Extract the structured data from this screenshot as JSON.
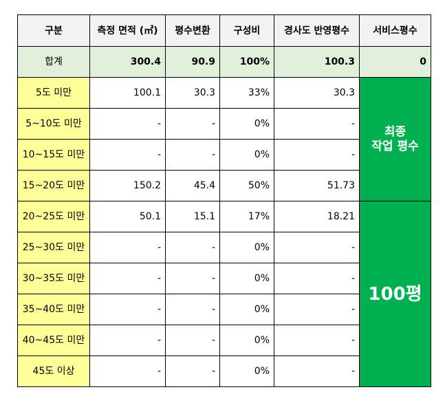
{
  "headers": {
    "category": "구분",
    "area": "측정 면적 (㎡)",
    "pyeong": "평수변환",
    "ratio": "구성비",
    "slope": "경사도 반영평수",
    "service": "서비스평수"
  },
  "total": {
    "category": "합계",
    "area": "300.4",
    "pyeong": "90.9",
    "ratio": "100%",
    "slope": "100.3",
    "service": "0"
  },
  "rows": [
    {
      "category": "5도 미만",
      "area": "100.1",
      "pyeong": "30.3",
      "ratio": "33%",
      "slope": "30.3"
    },
    {
      "category": "5~10도 미만",
      "area": "-",
      "pyeong": "-",
      "ratio": "0%",
      "slope": "-"
    },
    {
      "category": "10~15도 미만",
      "area": "-",
      "pyeong": "-",
      "ratio": "0%",
      "slope": "-"
    },
    {
      "category": "15~20도 미만",
      "area": "150.2",
      "pyeong": "45.4",
      "ratio": "50%",
      "slope": "51.73"
    },
    {
      "category": "20~25도 미만",
      "area": "50.1",
      "pyeong": "15.1",
      "ratio": "17%",
      "slope": "18.21"
    },
    {
      "category": "25~30도 미만",
      "area": "-",
      "pyeong": "-",
      "ratio": "0%",
      "slope": "-"
    },
    {
      "category": "30~35도 미만",
      "area": "-",
      "pyeong": "-",
      "ratio": "0%",
      "slope": "-"
    },
    {
      "category": "35~40도 미만",
      "area": "-",
      "pyeong": "-",
      "ratio": "0%",
      "slope": "-"
    },
    {
      "category": "40~45도 미만",
      "area": "-",
      "pyeong": "-",
      "ratio": "0%",
      "slope": "-"
    },
    {
      "category": "45도 이상",
      "area": "-",
      "pyeong": "-",
      "ratio": "0%",
      "slope": "-"
    }
  ],
  "final": {
    "label_line1": "최종",
    "label_line2": "작업 평수",
    "value": "100평"
  },
  "colors": {
    "header_bg": "#f2f2f2",
    "total_bg": "#e2efda",
    "category_bg": "#ffff99",
    "final_bg": "#00b050",
    "final_text": "#ffffff"
  }
}
